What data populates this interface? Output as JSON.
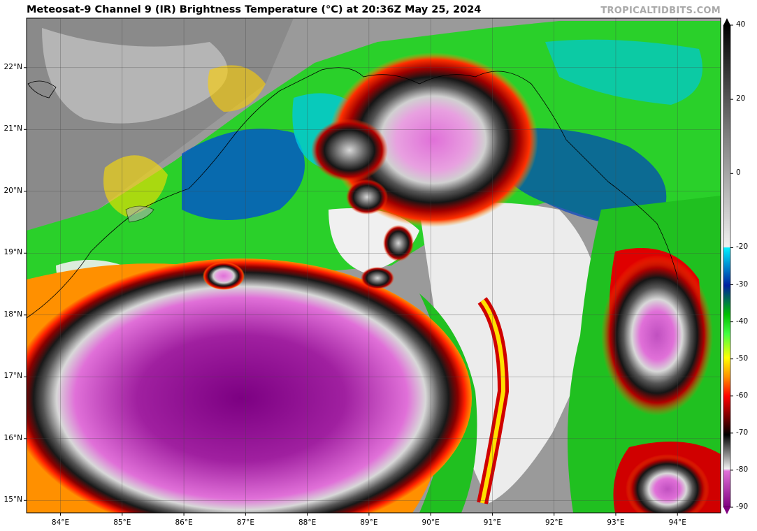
{
  "header": {
    "title": "Meteosat-9 Channel 9 (IR) Brightness Temperature (°C) at 20:36Z May 25, 2024",
    "brand": "TROPICALTIDBITS.COM"
  },
  "map": {
    "lon_range": [
      83.45,
      94.7
    ],
    "lat_range": [
      14.8,
      22.8
    ],
    "lat_ticks": [
      {
        "value": 15,
        "label": "15°N"
      },
      {
        "value": 16,
        "label": "16°N"
      },
      {
        "value": 17,
        "label": "17°N"
      },
      {
        "value": 18,
        "label": "18°N"
      },
      {
        "value": 19,
        "label": "19°N"
      },
      {
        "value": 20,
        "label": "20°N"
      },
      {
        "value": 21,
        "label": "21°N"
      },
      {
        "value": 22,
        "label": "22°N"
      }
    ],
    "lon_ticks": [
      {
        "value": 84,
        "label": "84°E"
      },
      {
        "value": 85,
        "label": "85°E"
      },
      {
        "value": 86,
        "label": "86°E"
      },
      {
        "value": 87,
        "label": "87°E"
      },
      {
        "value": 88,
        "label": "88°E"
      },
      {
        "value": 89,
        "label": "89°E"
      },
      {
        "value": 90,
        "label": "90°E"
      },
      {
        "value": 91,
        "label": "91°E"
      },
      {
        "value": 92,
        "label": "92°E"
      },
      {
        "value": 93,
        "label": "93°E"
      },
      {
        "value": 94,
        "label": "94°E"
      }
    ],
    "grid": true
  },
  "colorbar": {
    "range": [
      -90,
      40
    ],
    "ticks": [
      {
        "value": 40,
        "label": "40"
      },
      {
        "value": 20,
        "label": "20"
      },
      {
        "value": 0,
        "label": "0"
      },
      {
        "value": -20,
        "label": "-20"
      },
      {
        "value": -30,
        "label": "-30"
      },
      {
        "value": -40,
        "label": "-40"
      },
      {
        "value": -50,
        "label": "-50"
      },
      {
        "value": -60,
        "label": "-60"
      },
      {
        "value": -70,
        "label": "-70"
      },
      {
        "value": -80,
        "label": "-80"
      },
      {
        "value": -90,
        "label": "-90"
      }
    ],
    "colors": {
      "warm_gray": "#5a5a5a",
      "cloud_white": "#f0f0f0",
      "cyan": "#00d8e0",
      "blue": "#0030c0",
      "green": "#1ee61e",
      "yellow": "#ffee00",
      "orange": "#ff7a00",
      "red": "#e00000",
      "dark_red": "#700000",
      "black": "#111111",
      "pink": "#e070d8",
      "purple": "#8a0090"
    }
  }
}
